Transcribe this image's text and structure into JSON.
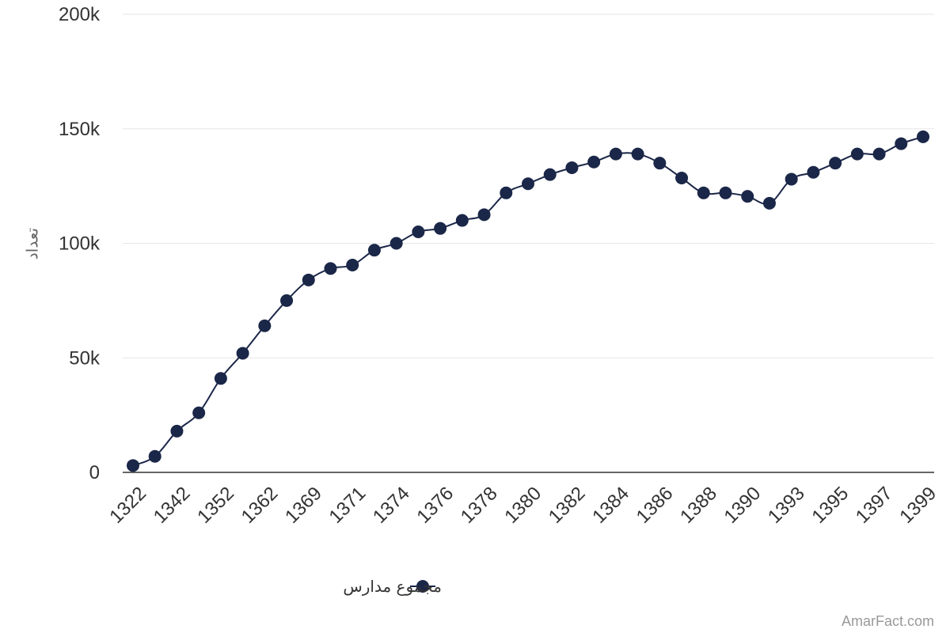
{
  "chart_data": {
    "type": "line",
    "title": "",
    "xlabel": "",
    "ylabel": "تعداد",
    "ylim": [
      0,
      200000
    ],
    "yticks": [
      0,
      50000,
      100000,
      150000,
      200000
    ],
    "ytick_labels": [
      "0",
      "50k",
      "100k",
      "150k",
      "200k"
    ],
    "xtick_labels": [
      "1322",
      "1342",
      "1352",
      "1362",
      "1369",
      "1371",
      "1374",
      "1376",
      "1378",
      "1380",
      "1382",
      "1384",
      "1386",
      "1388",
      "1390",
      "1393",
      "1395",
      "1397",
      "1399"
    ],
    "grid": true,
    "legend_position": "bottom-center",
    "color": "#1b2748",
    "series": [
      {
        "name": "مجموع مدارس",
        "values": [
          3000,
          7000,
          18000,
          26000,
          41000,
          52000,
          64000,
          75000,
          84000,
          89000,
          90500,
          97000,
          100000,
          105000,
          106500,
          110000,
          112500,
          122000,
          126000,
          130000,
          133000,
          135500,
          139000,
          139000,
          135000,
          128500,
          122000,
          122000,
          120500,
          117500,
          128000,
          131000,
          135000,
          139000,
          139000,
          143500,
          146500
        ]
      }
    ]
  },
  "credit": "AmarFact.com"
}
